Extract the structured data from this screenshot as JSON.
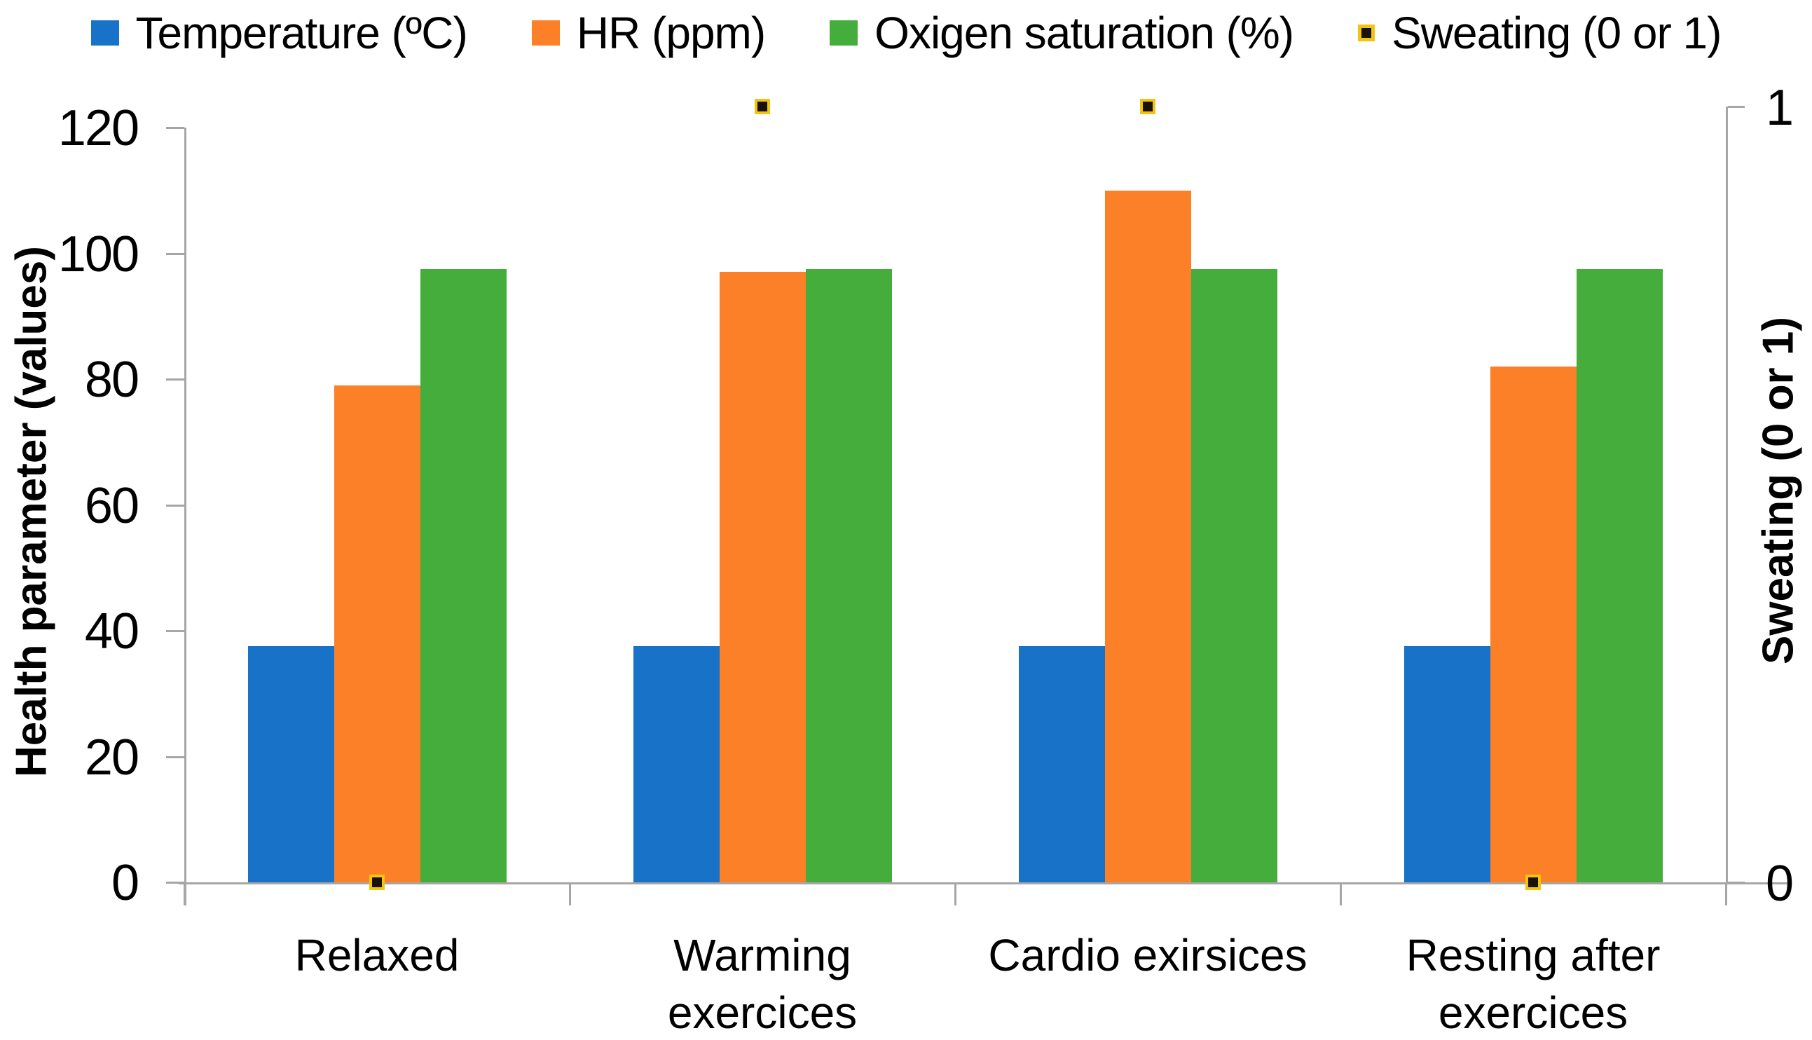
{
  "chart_data": {
    "type": "bar",
    "title": "",
    "categories": [
      "Relaxed",
      "Warming exercices",
      "Cardio exirsices",
      "Resting after exercices"
    ],
    "category_label_lines": [
      [
        "Relaxed"
      ],
      [
        "Warming",
        "exercices"
      ],
      [
        "Cardio exirsices"
      ],
      [
        "Resting after",
        "exercices"
      ]
    ],
    "series": [
      {
        "name": "Temperature (ºC)",
        "type": "bar",
        "axis": "primary",
        "color": "#1772C8",
        "values": [
          37.5,
          37.5,
          37.5,
          37.5
        ]
      },
      {
        "name": "HR (ppm)",
        "type": "bar",
        "axis": "primary",
        "color": "#FC8028",
        "values": [
          79,
          97,
          110,
          82
        ]
      },
      {
        "name": "Oxigen saturation (%)",
        "type": "bar",
        "axis": "primary",
        "color": "#45AD3B",
        "values": [
          97.5,
          97.5,
          97.5,
          97.5
        ]
      },
      {
        "name": "Sweating (0 or 1)",
        "type": "scatter",
        "axis": "secondary",
        "marker_fill": "#1A1205",
        "marker_border": "#F2C30F",
        "values": [
          0,
          1,
          1,
          0
        ]
      }
    ],
    "y_axis": {
      "title": "Health parameter (values)",
      "min": 0,
      "max": 120,
      "step": 20,
      "tick_values": [
        0,
        20,
        40,
        60,
        80,
        100,
        120
      ],
      "tick_labels": [
        "0",
        "20",
        "40",
        "60",
        "80",
        "100",
        "120"
      ]
    },
    "y2_axis": {
      "title": "Sweating (0 or 1)",
      "min": 0,
      "max": 1,
      "tick_values": [
        0,
        1
      ],
      "tick_labels": [
        "0",
        "1"
      ]
    },
    "legend_position": "top",
    "grid": false,
    "axis_line_color": "#A6A6A6",
    "text_color": "#000000",
    "background_color": "#FFFFFF"
  }
}
